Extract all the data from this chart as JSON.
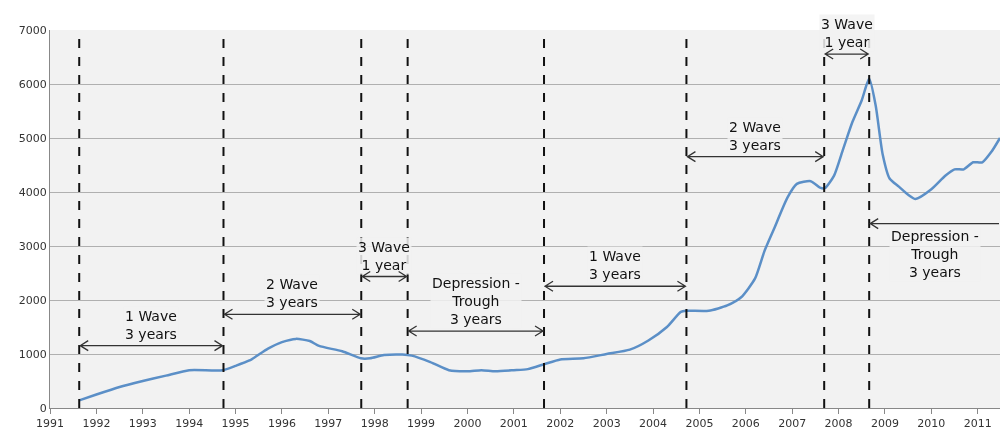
{
  "chart_data": {
    "type": "line",
    "color": "#5b8fc7",
    "x": [
      1991.63,
      1992.0,
      1992.5,
      1993.0,
      1993.5,
      1994.0,
      1994.72,
      1995.0,
      1995.3,
      1995.7,
      1996.0,
      1996.3,
      1996.6,
      1996.8,
      1997.3,
      1997.7,
      1997.9,
      1998.2,
      1998.6,
      1998.8,
      1999.2,
      1999.6,
      2000.0,
      2000.3,
      2000.6,
      2001.0,
      2001.3,
      2001.65,
      2002.0,
      2002.5,
      2003.0,
      2003.5,
      2003.9,
      2004.3,
      2004.6,
      2004.72,
      2005.2,
      2005.6,
      2005.9,
      2006.2,
      2006.4,
      2006.6,
      2006.9,
      2007.1,
      2007.4,
      2007.6,
      2007.7,
      2007.9,
      2008.1,
      2008.3,
      2008.5,
      2008.66,
      2008.8,
      2008.95,
      2009.1,
      2009.3,
      2009.5,
      2009.66,
      2010.0,
      2010.3,
      2010.5,
      2010.7,
      2010.9,
      2011.1,
      2011.3,
      2011.48
    ],
    "values": [
      140,
      250,
      390,
      500,
      600,
      700,
      700,
      780,
      880,
      1100,
      1220,
      1280,
      1240,
      1150,
      1050,
      920,
      920,
      980,
      990,
      970,
      850,
      700,
      680,
      700,
      680,
      700,
      720,
      810,
      900,
      920,
      1000,
      1080,
      1250,
      1500,
      1780,
      1800,
      1800,
      1900,
      2050,
      2400,
      2900,
      3300,
      3900,
      4150,
      4200,
      4080,
      4070,
      4300,
      4800,
      5300,
      5700,
      6100,
      5600,
      4700,
      4250,
      4100,
      3950,
      3870,
      4050,
      4300,
      4420,
      4420,
      4550,
      4550,
      4750,
      5000
    ],
    "xlim": [
      1991,
      2011.48
    ],
    "xticks": [
      1991,
      1992,
      1993,
      1994,
      1995,
      1996,
      1997,
      1998,
      1999,
      2000,
      2001,
      2002,
      2003,
      2004,
      2005,
      2006,
      2007,
      2008,
      2009,
      2010,
      2011
    ],
    "ylim": [
      0,
      7000
    ],
    "yticks": [
      0,
      1000,
      2000,
      3000,
      4000,
      5000,
      6000,
      7000
    ],
    "grid": "y",
    "marker": "none",
    "line_style": "solid",
    "ref_lines": [
      {
        "axis": "x",
        "value": 1991.63,
        "line_style": "dashed",
        "color": "#111111"
      },
      {
        "axis": "x",
        "value": 1994.74,
        "line_style": "dashed",
        "color": "#111111"
      },
      {
        "axis": "x",
        "value": 1997.71,
        "line_style": "dashed",
        "color": "#111111"
      },
      {
        "axis": "x",
        "value": 1998.71,
        "line_style": "dashed",
        "color": "#111111"
      },
      {
        "axis": "x",
        "value": 2001.65,
        "line_style": "dashed",
        "color": "#111111"
      },
      {
        "axis": "x",
        "value": 2004.72,
        "line_style": "dashed",
        "color": "#111111"
      },
      {
        "axis": "x",
        "value": 2007.69,
        "line_style": "dashed",
        "color": "#111111"
      },
      {
        "axis": "x",
        "value": 2008.66,
        "line_style": "dashed",
        "color": "#111111"
      }
    ],
    "annotations": [
      "1 Wave\n3 years",
      "2 Wave\n3 years",
      "3 Wave\n1 year",
      "Depression -\nTrough\n3 years",
      "1 Wave\n3 years",
      "2 Wave\n3 years",
      "3 Wave\n1 year",
      "Depression -\nTrough\n3 years"
    ]
  }
}
